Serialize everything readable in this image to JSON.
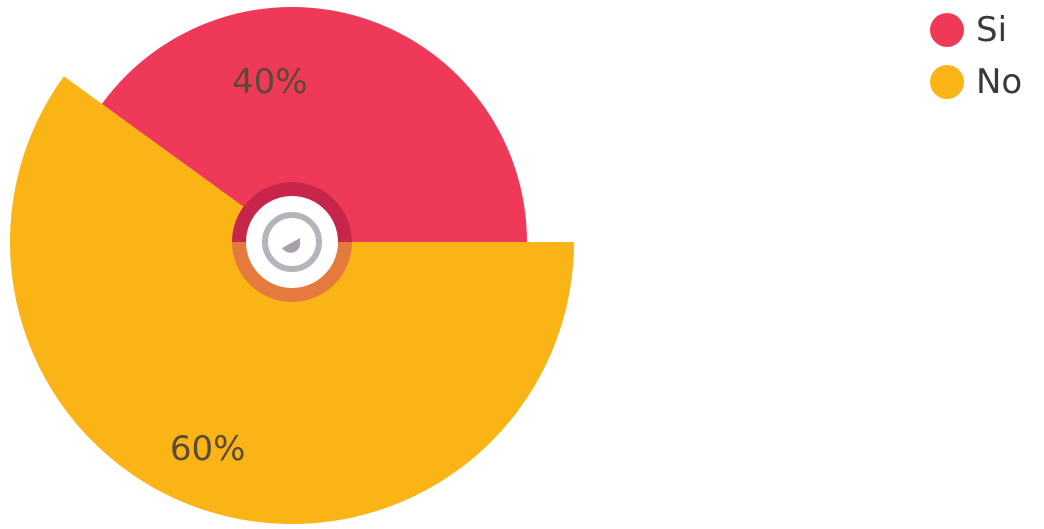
{
  "chart_data": {
    "type": "pie",
    "categories": [
      "Si",
      "No"
    ],
    "values": [
      40,
      60
    ],
    "data_labels": [
      "40%",
      "60%"
    ],
    "colors": [
      "#ee3a58",
      "#fbb416"
    ],
    "legend": {
      "position": "top-right",
      "entries": [
        {
          "label": "Si",
          "color": "#ee3a58"
        },
        {
          "label": "No",
          "color": "#fbb416"
        }
      ]
    }
  }
}
